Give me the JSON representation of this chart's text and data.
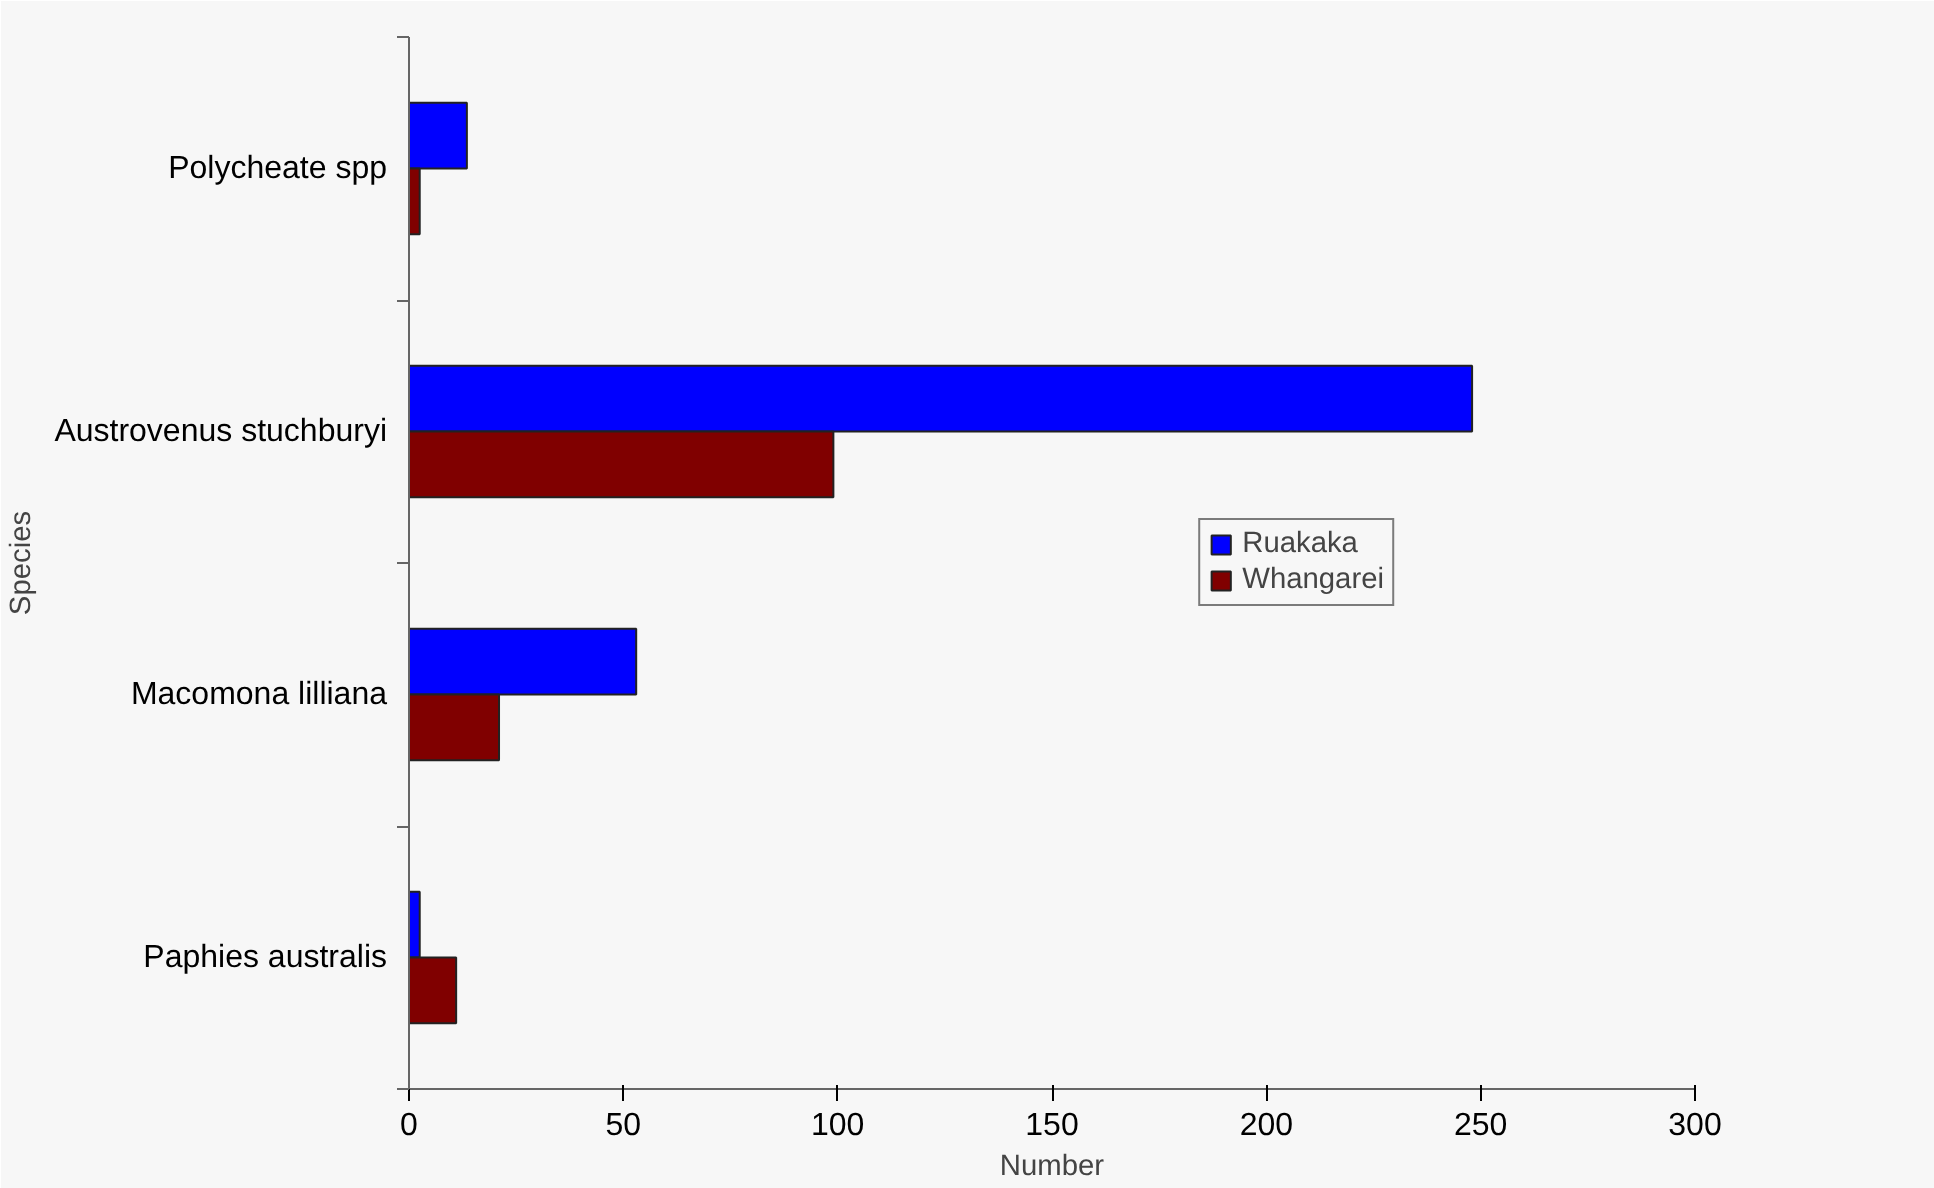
{
  "chart_data": {
    "type": "bar",
    "orientation": "horizontal",
    "xlabel": "Number",
    "ylabel": "Species",
    "categories": [
      "Polycheate spp",
      "Austrovenus stuchburyi",
      "Macomona lilliana",
      "Paphies australis"
    ],
    "series": [
      {
        "name": "Ruakaka",
        "color": "#0000ff",
        "values": [
          13.5,
          248,
          53,
          2.5
        ]
      },
      {
        "name": "Whangarei",
        "color": "#800000",
        "values": [
          2.5,
          99,
          21,
          11
        ]
      }
    ],
    "xlim": [
      0,
      300
    ],
    "xticks": [
      0,
      50,
      100,
      150,
      200,
      250,
      300
    ],
    "grid": false,
    "legend": "right"
  }
}
